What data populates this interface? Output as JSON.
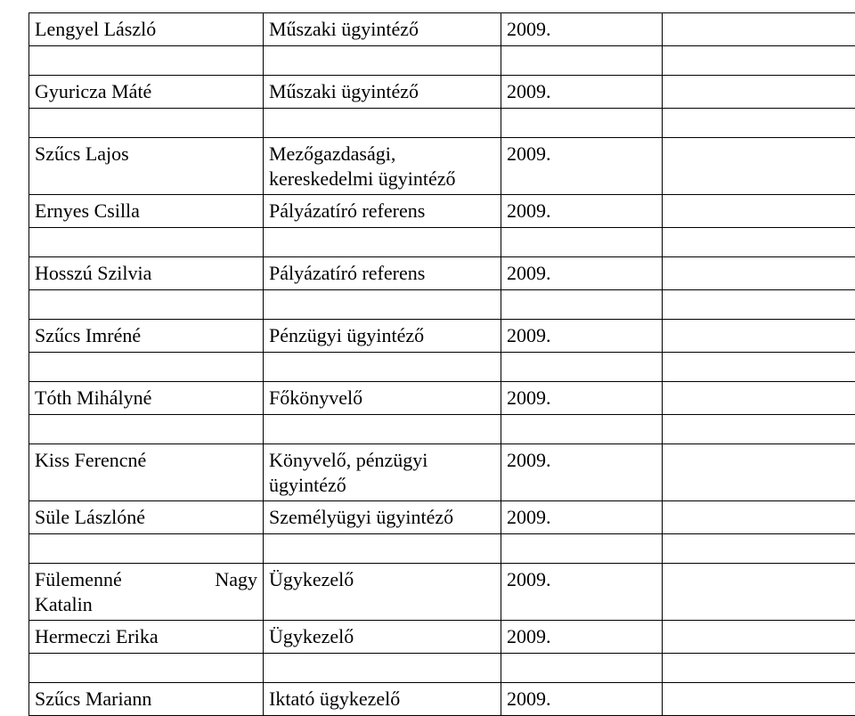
{
  "rows": [
    {
      "name": "Lengyel László",
      "role": "Műszaki ügyintéző",
      "year": "2009."
    },
    {
      "name": "",
      "role": "",
      "year": ""
    },
    {
      "name": "Gyuricza Máté",
      "role": "Műszaki ügyintéző",
      "year": "2009."
    },
    {
      "name": "",
      "role": "",
      "year": ""
    },
    {
      "name": "Szűcs Lajos",
      "role": "Mezőgazdasági, kereskedelmi ügyintéző",
      "year": "2009."
    },
    {
      "name": "Ernyes Csilla",
      "role": "Pályázatíró referens",
      "year": "2009."
    },
    {
      "name": "",
      "role": "",
      "year": ""
    },
    {
      "name": "Hosszú Szilvia",
      "role": "Pályázatíró referens",
      "year": "2009."
    },
    {
      "name": "",
      "role": "",
      "year": ""
    },
    {
      "name": "Szűcs Imréné",
      "role": "Pénzügyi ügyintéző",
      "year": "2009."
    },
    {
      "name": "",
      "role": "",
      "year": ""
    },
    {
      "name": "Tóth Mihályné",
      "role": "Főkönyvelő",
      "year": "2009."
    },
    {
      "name": "",
      "role": "",
      "year": ""
    },
    {
      "name": "Kiss Ferencné",
      "role": "Könyvelő, pénzügyi ügyintéző",
      "year": "2009."
    },
    {
      "name": "Süle Lászlóné",
      "role": "Személyügyi ügyintéző",
      "year": "2009."
    },
    {
      "name": "",
      "role": "",
      "year": ""
    }
  ],
  "special_row": {
    "name_line1": "Fülemenné",
    "name_line1b": "Nagy",
    "name_line2": "Katalin",
    "role": "Ügykezelő",
    "year": "2009."
  },
  "rows_after": [
    {
      "name": "Hermeczi Erika",
      "role": "Ügykezelő",
      "year": "2009."
    },
    {
      "name": "",
      "role": "",
      "year": ""
    },
    {
      "name": "Szűcs Mariann",
      "role": "Iktató ügykezelő",
      "year": "2009."
    }
  ],
  "colors": {
    "text": "#000000",
    "border": "#000000",
    "background": "#ffffff"
  },
  "font": {
    "family": "Times New Roman",
    "size_pt": 16
  }
}
